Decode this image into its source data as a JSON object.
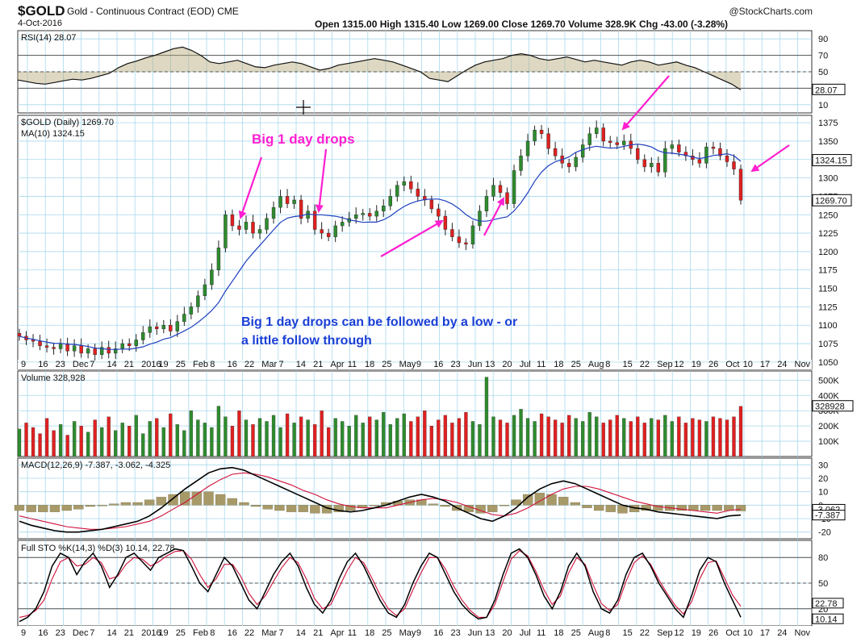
{
  "header": {
    "symbol": "$GOLD",
    "description": "Gold - Continuous Contract (EOD)  CME",
    "date": "4-Oct-2016",
    "ohlc": "Open 1315.00  High 1315.40  Low 1269.00  Close 1269.70  Volume 328.9K  Chg -43.00 (-3.28%)",
    "brand": "@StockCharts.com"
  },
  "colors": {
    "up": "#2e8b2e",
    "down": "#e02020",
    "ma": "#1f3fbf",
    "annotation": "#ff1fd0",
    "note": "#1a3fd6",
    "grid": "#a8d8ec"
  },
  "chart_data": [
    {
      "type": "line",
      "panel": "rsi",
      "legend": "RSI(14) 28.07",
      "y_ticks": [
        90,
        70,
        50,
        30,
        10
      ],
      "ylim": [
        0,
        100
      ],
      "last_value": "28.07",
      "values": [
        40,
        38,
        36,
        35,
        37,
        39,
        41,
        40,
        42,
        45,
        48,
        55,
        60,
        63,
        67,
        70,
        74,
        78,
        80,
        76,
        70,
        62,
        60,
        62,
        64,
        60,
        56,
        55,
        58,
        60,
        62,
        60,
        56,
        52,
        54,
        58,
        60,
        62,
        64,
        66,
        64,
        62,
        58,
        54,
        50,
        42,
        40,
        38,
        45,
        52,
        58,
        62,
        64,
        66,
        70,
        72,
        70,
        66,
        64,
        66,
        68,
        65,
        62,
        64,
        62,
        60,
        58,
        62,
        64,
        62,
        58,
        60,
        62,
        58,
        55,
        50,
        45,
        40,
        35,
        28
      ]
    },
    {
      "type": "candlestick",
      "panel": "price",
      "legend": "$GOLD (Daily) 1269.70",
      "ma_legend": "MA(10) 1324.15",
      "y_ticks": [
        1375,
        1350,
        1325,
        1300,
        1275,
        1250,
        1225,
        1200,
        1175,
        1150,
        1125,
        1100,
        1075,
        1050
      ],
      "ylim": [
        1040,
        1385
      ],
      "price_badges": [
        "1324.15",
        "1269.70"
      ],
      "x_ticks": [
        "9",
        "16",
        "23",
        "Dec",
        "7",
        "14",
        "21",
        "2016",
        "19",
        "25",
        "Feb",
        "8",
        "16",
        "22",
        "Mar",
        "7",
        "14",
        "21",
        "Apr",
        "11",
        "18",
        "25",
        "May",
        "9",
        "16",
        "23",
        "Jun",
        "13",
        "20",
        "Jul",
        "11",
        "18",
        "25",
        "Aug",
        "8",
        "15",
        "22",
        "Sep",
        "12",
        "19",
        "26",
        "Oct",
        "10",
        "17",
        "24",
        "Nov"
      ],
      "closes": [
        1085,
        1080,
        1078,
        1072,
        1070,
        1068,
        1075,
        1065,
        1072,
        1062,
        1068,
        1060,
        1070,
        1062,
        1068,
        1075,
        1072,
        1080,
        1090,
        1098,
        1095,
        1100,
        1092,
        1105,
        1115,
        1125,
        1140,
        1155,
        1175,
        1205,
        1250,
        1235,
        1230,
        1240,
        1225,
        1230,
        1245,
        1260,
        1275,
        1265,
        1270,
        1245,
        1255,
        1230,
        1225,
        1220,
        1235,
        1240,
        1245,
        1250,
        1252,
        1248,
        1255,
        1262,
        1275,
        1290,
        1295,
        1285,
        1275,
        1270,
        1258,
        1248,
        1230,
        1220,
        1212,
        1210,
        1235,
        1255,
        1275,
        1290,
        1280,
        1265,
        1310,
        1330,
        1350,
        1365,
        1360,
        1340,
        1330,
        1320,
        1315,
        1328,
        1345,
        1360,
        1368,
        1350,
        1348,
        1345,
        1350,
        1340,
        1325,
        1315,
        1320,
        1308,
        1340,
        1345,
        1335,
        1330,
        1325,
        1320,
        1342,
        1340,
        1330,
        1322,
        1312,
        1269.7
      ]
    },
    {
      "type": "bar",
      "panel": "volume",
      "legend": "Volume 328,928",
      "y_ticks": [
        "500K",
        "400K",
        "300K",
        "200K",
        "100K"
      ],
      "ylim": [
        0,
        560000
      ],
      "last_value": "328928",
      "values": [
        180000,
        220000,
        190000,
        150000,
        250000,
        170000,
        210000,
        140000,
        230000,
        200000,
        160000,
        240000,
        190000,
        260000,
        170000,
        220000,
        200000,
        270000,
        150000,
        230000,
        250000,
        190000,
        280000,
        210000,
        170000,
        300000,
        240000,
        220000,
        190000,
        330000,
        260000,
        200000,
        300000,
        240000,
        210000,
        250000,
        230000,
        270000,
        190000,
        280000,
        220000,
        260000,
        240000,
        210000,
        300000,
        190000,
        250000,
        230000,
        200000,
        270000,
        220000,
        260000,
        240000,
        290000,
        210000,
        250000,
        280000,
        230000,
        260000,
        300000,
        200000,
        240000,
        270000,
        220000,
        250000,
        290000,
        230000,
        210000,
        520000,
        260000,
        240000,
        220000,
        270000,
        310000,
        250000,
        230000,
        280000,
        260000,
        240000,
        220000,
        270000,
        250000,
        230000,
        290000,
        260000,
        220000,
        240000,
        270000,
        250000,
        230000,
        260000,
        220000,
        250000,
        240000,
        270000,
        230000,
        260000,
        220000,
        250000,
        240000,
        230000,
        260000,
        250000,
        240000,
        260000,
        328928
      ]
    },
    {
      "type": "line",
      "panel": "macd",
      "legend": "MACD(12,26,9) -7.387, -3.062, -4.325",
      "y_ticks": [
        30,
        20,
        10,
        0,
        -10,
        -20
      ],
      "ylim": [
        -25,
        35
      ],
      "last_values": [
        "-3.062",
        "-7.387"
      ],
      "macd": [
        -12,
        -15,
        -17,
        -19,
        -20,
        -20,
        -19,
        -18,
        -16,
        -14,
        -12,
        -8,
        -2,
        5,
        12,
        18,
        24,
        27,
        28,
        26,
        22,
        18,
        14,
        10,
        6,
        2,
        -2,
        -4,
        -5,
        -4,
        -2,
        0,
        3,
        6,
        8,
        6,
        3,
        -2,
        -6,
        -10,
        -12,
        -8,
        -2,
        6,
        12,
        16,
        18,
        16,
        12,
        8,
        4,
        0,
        -2,
        -3,
        -5,
        -6,
        -7,
        -8,
        -9,
        -10,
        -8,
        -7.387
      ],
      "signal": [
        -8,
        -10,
        -12,
        -14,
        -16,
        -17,
        -18,
        -18,
        -17,
        -16,
        -14,
        -12,
        -8,
        -3,
        2,
        8,
        14,
        19,
        23,
        24,
        23,
        21,
        18,
        15,
        11,
        8,
        4,
        1,
        -1,
        -2,
        -2,
        -2,
        0,
        2,
        4,
        5,
        4,
        2,
        -1,
        -4,
        -7,
        -8,
        -6,
        -2,
        3,
        8,
        12,
        14,
        14,
        12,
        9,
        6,
        3,
        1,
        -1,
        -2,
        -3,
        -4,
        -5,
        -6,
        -4,
        -3.062
      ]
    },
    {
      "type": "line",
      "panel": "stochastic",
      "legend": "Full STO %K(14,3) %D(3) 10.14, 22.78",
      "y_ticks": [
        80,
        50,
        20
      ],
      "ylim": [
        0,
        100
      ],
      "last_values": [
        "22.78",
        "10.14"
      ],
      "k": [
        5,
        10,
        20,
        40,
        70,
        85,
        80,
        60,
        75,
        85,
        70,
        45,
        60,
        80,
        85,
        75,
        65,
        80,
        85,
        90,
        88,
        70,
        50,
        40,
        60,
        80,
        70,
        50,
        30,
        20,
        40,
        60,
        75,
        85,
        70,
        45,
        25,
        15,
        30,
        55,
        75,
        85,
        70,
        50,
        30,
        15,
        10,
        25,
        50,
        70,
        85,
        80,
        60,
        40,
        25,
        15,
        8,
        10,
        30,
        60,
        85,
        90,
        80,
        60,
        35,
        20,
        40,
        70,
        85,
        70,
        40,
        20,
        15,
        30,
        60,
        80,
        85,
        70,
        50,
        35,
        20,
        10,
        35,
        65,
        80,
        75,
        50,
        30,
        10.14
      ],
      "d": [
        10,
        12,
        18,
        30,
        55,
        75,
        80,
        70,
        72,
        80,
        74,
        55,
        58,
        72,
        80,
        78,
        70,
        75,
        82,
        87,
        88,
        78,
        60,
        45,
        55,
        72,
        72,
        58,
        38,
        25,
        35,
        52,
        68,
        80,
        74,
        55,
        32,
        20,
        25,
        45,
        65,
        80,
        74,
        56,
        36,
        20,
        12,
        20,
        42,
        62,
        80,
        80,
        66,
        46,
        30,
        18,
        10,
        10,
        25,
        52,
        78,
        88,
        82,
        64,
        42,
        25,
        35,
        62,
        80,
        72,
        48,
        26,
        18,
        25,
        52,
        74,
        82,
        72,
        54,
        38,
        24,
        14,
        28,
        55,
        74,
        76,
        56,
        36,
        22.78
      ]
    }
  ],
  "annotations": {
    "big_drops_title": "Big 1 day drops",
    "note_line1": "Big 1 day drops can be followed by a low  -  or",
    "note_line2": "a little follow through"
  }
}
